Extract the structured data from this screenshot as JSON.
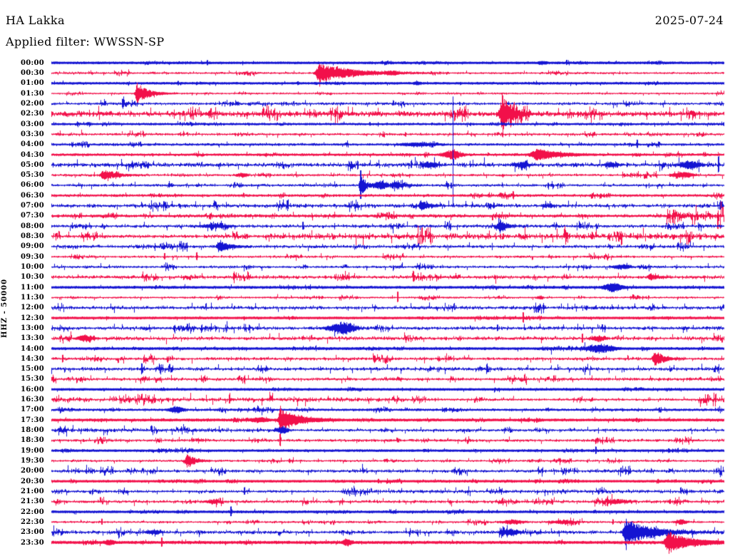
{
  "chart_data": {
    "type": "line",
    "subtype": "helicorder-day-plot",
    "title": "HA Lakka",
    "date": "2025-07-24",
    "filter_line": "Applied filter: WWSSN-SP",
    "ylabel": "HHZ - 50000",
    "x_axis": {
      "unit": "minutes per row",
      "range": [
        0,
        30
      ],
      "ticks_visible": false
    },
    "row_interval_minutes": 30,
    "legend": "none",
    "grid": "off",
    "colors": {
      "blue": "#1414d2",
      "red": "#f2104a"
    },
    "rows": [
      {
        "time": "00:00",
        "color": "blue",
        "thick": 2.6,
        "noise": 0.35,
        "events": [
          {
            "kind": "spike",
            "t": 6.95,
            "amp": 2.5
          },
          {
            "kind": "burst",
            "t": 21.9,
            "amp": 1.5,
            "w": 6
          },
          {
            "kind": "spike",
            "t": 23.0,
            "amp": 1.5
          }
        ]
      },
      {
        "time": "00:30",
        "color": "red",
        "thick": 1.0,
        "noise": 0.55,
        "events": [
          {
            "kind": "quake",
            "t": 11.96,
            "amp": 13,
            "w": 10,
            "coda": 45
          },
          {
            "kind": "clip",
            "t": 11.96,
            "up": 13,
            "dn": 19
          },
          {
            "kind": "burst",
            "t": 15.2,
            "amp": 2,
            "w": 8
          }
        ]
      },
      {
        "time": "01:00",
        "color": "blue",
        "thick": 2.4,
        "noise": 0.4,
        "events": [
          {
            "kind": "spike",
            "t": 5.65,
            "amp": 2
          },
          {
            "kind": "spike",
            "t": 11.0,
            "amp": 1.5
          },
          {
            "kind": "burst",
            "t": 16.3,
            "amp": 1.5,
            "w": 5
          }
        ]
      },
      {
        "time": "01:30",
        "color": "red",
        "thick": 1.0,
        "noise": 0.5,
        "events": [
          {
            "kind": "quake",
            "t": 3.82,
            "amp": 14,
            "w": 5,
            "coda": 15
          },
          {
            "kind": "clip",
            "t": 3.82,
            "up": 15,
            "dn": 18
          }
        ]
      },
      {
        "time": "02:00",
        "color": "blue",
        "thick": 1.0,
        "noise": 0.8,
        "events": [
          {
            "kind": "spike",
            "t": 3.18,
            "amp": 6
          }
        ]
      },
      {
        "time": "02:30",
        "color": "red",
        "thick": 1.4,
        "noise": 1.7,
        "events": [
          {
            "kind": "quake",
            "t": 20.14,
            "amp": 24,
            "w": 8,
            "coda": 12
          },
          {
            "kind": "clip",
            "t": 20.14,
            "up": 26,
            "dn": 33
          }
        ]
      },
      {
        "time": "03:00",
        "color": "blue",
        "thick": 2.0,
        "noise": 0.5,
        "events": [
          {
            "kind": "spike",
            "t": 14.2,
            "amp": 1.5
          }
        ]
      },
      {
        "time": "03:30",
        "color": "red",
        "thick": 1.0,
        "noise": 0.75,
        "events": [
          {
            "kind": "spike",
            "t": 15.8,
            "amp": 2
          }
        ]
      },
      {
        "time": "04:00",
        "color": "blue",
        "thick": 1.6,
        "noise": 0.6,
        "events": [
          {
            "kind": "burst",
            "t": 16.4,
            "amp": 2,
            "w": 25
          },
          {
            "kind": "spike",
            "t": 26.15,
            "amp": 5
          }
        ]
      },
      {
        "time": "04:30",
        "color": "red",
        "thick": 2.0,
        "noise": 0.55,
        "events": [
          {
            "kind": "burst",
            "t": 17.9,
            "amp": 6,
            "w": 12
          },
          {
            "kind": "quake",
            "t": 21.73,
            "amp": 8,
            "w": 18,
            "coda": 25
          }
        ]
      },
      {
        "time": "05:00",
        "color": "blue",
        "thick": 1.0,
        "noise": 1.4,
        "events": [
          {
            "kind": "burst",
            "t": 16.9,
            "amp": 4,
            "w": 10
          },
          {
            "kind": "clip",
            "t": 17.91,
            "up": 96,
            "dn": 59
          },
          {
            "kind": "burst",
            "t": 21.0,
            "amp": 3,
            "w": 12
          },
          {
            "kind": "burst",
            "t": 25.0,
            "amp": 3,
            "w": 10
          },
          {
            "kind": "burst",
            "t": 28.5,
            "amp": 5,
            "w": 14
          },
          {
            "kind": "spike",
            "t": 29.75,
            "amp": 11
          }
        ]
      },
      {
        "time": "05:30",
        "color": "red",
        "thick": 1.0,
        "noise": 0.7,
        "events": [
          {
            "kind": "quake",
            "t": 2.32,
            "amp": 6,
            "w": 8,
            "coda": 20
          },
          {
            "kind": "burst",
            "t": 8.5,
            "amp": 2.5,
            "w": 8
          },
          {
            "kind": "burst",
            "t": 28.2,
            "amp": 3.5,
            "w": 14
          }
        ]
      },
      {
        "time": "06:00",
        "color": "blue",
        "thick": 1.0,
        "noise": 0.8,
        "events": [
          {
            "kind": "quake",
            "t": 13.78,
            "amp": 19,
            "w": 3,
            "coda": 6
          },
          {
            "kind": "clip",
            "t": 13.78,
            "up": 21,
            "dn": 19
          },
          {
            "kind": "burst",
            "t": 14.7,
            "amp": 5.5,
            "w": 10
          },
          {
            "kind": "quake",
            "t": 15.3,
            "amp": 4,
            "w": 8,
            "coda": 15
          }
        ]
      },
      {
        "time": "06:30",
        "color": "red",
        "thick": 1.8,
        "noise": 0.6,
        "events": [
          {
            "kind": "spike",
            "t": 20.61,
            "amp": 4
          }
        ]
      },
      {
        "time": "07:00",
        "color": "blue",
        "thick": 1.0,
        "noise": 1.2,
        "events": [
          {
            "kind": "quake",
            "t": 16.48,
            "amp": 6,
            "w": 6,
            "coda": 12
          },
          {
            "kind": "burst",
            "t": 22.2,
            "amp": 2,
            "w": 8
          }
        ]
      },
      {
        "time": "07:30",
        "color": "red",
        "thick": 1.8,
        "noise": 0.8,
        "zones": [
          {
            "from": 27.4,
            "to": 30,
            "noise": 2.8
          }
        ],
        "events": []
      },
      {
        "time": "08:00",
        "color": "blue",
        "thick": 1.0,
        "noise": 1.0,
        "events": [
          {
            "kind": "burst",
            "t": 7.3,
            "amp": 2.5,
            "w": 20
          },
          {
            "kind": "spike",
            "t": 11.2,
            "amp": 5.5
          },
          {
            "kind": "quake",
            "t": 19.98,
            "amp": 8,
            "w": 6,
            "coda": 10
          }
        ]
      },
      {
        "time": "08:30",
        "color": "red",
        "thick": 1.0,
        "noise": 1.1,
        "zones": [
          {
            "from": 9.5,
            "to": 30,
            "noise": 2.1
          }
        ],
        "events": []
      },
      {
        "time": "09:00",
        "color": "blue",
        "thick": 1.0,
        "noise": 0.95,
        "events": [
          {
            "kind": "quake",
            "t": 7.48,
            "amp": 8,
            "w": 6,
            "coda": 14
          }
        ]
      },
      {
        "time": "09:30",
        "color": "red",
        "thick": 1.0,
        "noise": 0.65,
        "events": [
          {
            "kind": "spike",
            "t": 5.03,
            "amp": 4
          },
          {
            "kind": "spike",
            "t": 6.46,
            "amp": 5
          }
        ]
      },
      {
        "time": "10:00",
        "color": "blue",
        "thick": 1.0,
        "noise": 0.75,
        "events": [
          {
            "kind": "burst",
            "t": 25.48,
            "amp": 3,
            "w": 12
          }
        ]
      },
      {
        "time": "10:30",
        "color": "red",
        "thick": 1.0,
        "noise": 1.1,
        "events": [
          {
            "kind": "spike",
            "t": 16.16,
            "amp": 7
          },
          {
            "kind": "quake",
            "t": 26.72,
            "amp": 5,
            "w": 6,
            "coda": 10
          }
        ]
      },
      {
        "time": "11:00",
        "color": "blue",
        "thick": 2.6,
        "noise": 0.45,
        "events": [
          {
            "kind": "burst",
            "t": 25.07,
            "amp": 5,
            "w": 12
          }
        ]
      },
      {
        "time": "11:30",
        "color": "red",
        "thick": 1.0,
        "noise": 0.55,
        "events": [
          {
            "kind": "spike",
            "t": 15.46,
            "amp": 7
          },
          {
            "kind": "burst",
            "t": 21.8,
            "amp": 2.5,
            "w": 4
          }
        ]
      },
      {
        "time": "12:00",
        "color": "blue",
        "thick": 1.0,
        "noise": 1.1,
        "events": []
      },
      {
        "time": "12:30",
        "color": "red",
        "thick": 2.6,
        "noise": 0.35,
        "events": [
          {
            "kind": "spike",
            "t": 21.06,
            "amp": 6
          }
        ]
      },
      {
        "time": "13:00",
        "color": "blue",
        "thick": 1.0,
        "noise": 1.1,
        "events": [
          {
            "kind": "burst",
            "t": 12.98,
            "amp": 8,
            "w": 18
          },
          {
            "kind": "spike",
            "t": 19.9,
            "amp": 4
          }
        ]
      },
      {
        "time": "13:30",
        "color": "red",
        "thick": 1.0,
        "noise": 1.2,
        "events": [
          {
            "kind": "burst",
            "t": 1.53,
            "amp": 4,
            "w": 12
          },
          {
            "kind": "spike",
            "t": 23.7,
            "amp": 5.5
          },
          {
            "kind": "burst",
            "t": 24.43,
            "amp": 3.5,
            "w": 10
          }
        ]
      },
      {
        "time": "14:00",
        "color": "blue",
        "thick": 2.6,
        "noise": 0.45,
        "zones": [
          {
            "from": 21.9,
            "to": 25.1,
            "noise": 1.2
          }
        ],
        "events": [
          {
            "kind": "burst",
            "t": 24.5,
            "amp": 4,
            "w": 18
          }
        ]
      },
      {
        "time": "14:30",
        "color": "red",
        "thick": 1.0,
        "noise": 0.95,
        "events": [
          {
            "kind": "spike",
            "t": 0.5,
            "amp": 5
          },
          {
            "kind": "spike",
            "t": 14.4,
            "amp": 4
          },
          {
            "kind": "quake",
            "t": 26.95,
            "amp": 10,
            "w": 7,
            "coda": 12
          }
        ]
      },
      {
        "time": "15:00",
        "color": "blue",
        "thick": 1.0,
        "noise": 1.05,
        "events": [
          {
            "kind": "spike",
            "t": 19.41,
            "amp": 5
          }
        ]
      },
      {
        "time": "15:30",
        "color": "red",
        "thick": 1.0,
        "noise": 0.95,
        "events": []
      },
      {
        "time": "16:00",
        "color": "blue",
        "thick": 2.6,
        "noise": 0.35,
        "events": []
      },
      {
        "time": "16:30",
        "color": "red",
        "thick": 1.0,
        "noise": 0.75,
        "zones": [
          {
            "from": 0,
            "to": 15.5,
            "noise": 1.5
          },
          {
            "from": 28.8,
            "to": 30,
            "noise": 2.4
          }
        ],
        "events": [
          {
            "kind": "spike",
            "t": 7.95,
            "amp": 6
          }
        ]
      },
      {
        "time": "17:00",
        "color": "blue",
        "thick": 1.8,
        "noise": 0.55,
        "events": [
          {
            "kind": "burst",
            "t": 5.57,
            "amp": 4,
            "w": 10
          },
          {
            "kind": "spike",
            "t": 17.6,
            "amp": 1.8
          }
        ]
      },
      {
        "time": "17:30",
        "color": "red",
        "thick": 2.6,
        "noise": 0.5,
        "events": [
          {
            "kind": "burst",
            "t": 9.3,
            "amp": 2.5,
            "w": 12
          },
          {
            "kind": "quake",
            "t": 10.21,
            "amp": 15,
            "w": 5,
            "coda": 22
          },
          {
            "kind": "clip",
            "t": 10.21,
            "up": 20,
            "dn": 27
          }
        ]
      },
      {
        "time": "18:00",
        "color": "blue",
        "thick": 1.0,
        "noise": 0.8,
        "zones": [
          {
            "from": 0,
            "to": 10,
            "noise": 1.3
          }
        ],
        "events": [
          {
            "kind": "burst",
            "t": 10.28,
            "amp": 5,
            "w": 8
          }
        ]
      },
      {
        "time": "18:30",
        "color": "red",
        "thick": 1.0,
        "noise": 0.85,
        "events": [
          {
            "kind": "spike",
            "t": 10.21,
            "amp": 8
          }
        ]
      },
      {
        "time": "19:00",
        "color": "blue",
        "thick": 2.4,
        "noise": 0.4,
        "events": [
          {
            "kind": "spike",
            "t": 24.28,
            "amp": 4
          }
        ]
      },
      {
        "time": "19:30",
        "color": "red",
        "thick": 1.0,
        "noise": 0.6,
        "events": [
          {
            "kind": "quake",
            "t": 6.04,
            "amp": 9,
            "w": 4,
            "coda": 10
          },
          {
            "kind": "spike",
            "t": 22.7,
            "amp": 2
          }
        ]
      },
      {
        "time": "20:00",
        "color": "blue",
        "thick": 1.0,
        "noise": 0.95,
        "events": []
      },
      {
        "time": "20:30",
        "color": "red",
        "thick": 2.6,
        "noise": 0.35,
        "events": [
          {
            "kind": "spike",
            "t": 14.6,
            "amp": 2
          }
        ]
      },
      {
        "time": "21:00",
        "color": "blue",
        "thick": 1.0,
        "noise": 0.7,
        "zones": [
          {
            "from": 13,
            "to": 30,
            "noise": 1.1
          }
        ],
        "events": [
          {
            "kind": "spike",
            "t": 8.62,
            "amp": 5
          }
        ]
      },
      {
        "time": "21:30",
        "color": "red",
        "thick": 1.0,
        "noise": 0.95,
        "events": [
          {
            "kind": "burst",
            "t": 7.2,
            "amp": 2.5,
            "w": 10
          },
          {
            "kind": "burst",
            "t": 25.2,
            "amp": 3,
            "w": 16
          },
          {
            "kind": "spike",
            "t": 27.6,
            "amp": 2.5
          }
        ]
      },
      {
        "time": "22:00",
        "color": "blue",
        "thick": 2.6,
        "noise": 0.4,
        "events": [
          {
            "kind": "spike",
            "t": 7.99,
            "amp": 6
          }
        ]
      },
      {
        "time": "22:30",
        "color": "red",
        "thick": 1.0,
        "noise": 0.65,
        "events": [
          {
            "kind": "spike",
            "t": 2.23,
            "amp": 4
          },
          {
            "kind": "burst",
            "t": 20.6,
            "amp": 2.5,
            "w": 16
          },
          {
            "kind": "burst",
            "t": 22.8,
            "amp": 2.5,
            "w": 16
          },
          {
            "kind": "spike",
            "t": 25.04,
            "amp": 3
          },
          {
            "kind": "burst",
            "t": 28.1,
            "amp": 3,
            "w": 8
          }
        ]
      },
      {
        "time": "23:00",
        "color": "blue",
        "thick": 1.0,
        "noise": 1.1,
        "events": [
          {
            "kind": "burst",
            "t": 4.55,
            "amp": 3,
            "w": 10
          },
          {
            "kind": "burst",
            "t": 20.5,
            "amp": 4,
            "w": 12
          },
          {
            "kind": "quake",
            "t": 25.64,
            "amp": 17,
            "w": 8,
            "coda": 35
          },
          {
            "kind": "clip",
            "t": 25.64,
            "up": 19,
            "dn": 25
          }
        ]
      },
      {
        "time": "23:30",
        "color": "red",
        "thick": 2.8,
        "noise": 0.5,
        "events": [
          {
            "kind": "burst",
            "t": 2.6,
            "amp": 3,
            "w": 6
          },
          {
            "kind": "spike",
            "t": 4.9,
            "amp": 5
          },
          {
            "kind": "burst",
            "t": 13.2,
            "amp": 4,
            "w": 6
          },
          {
            "kind": "quake",
            "t": 27.52,
            "amp": 13,
            "w": 9,
            "coda": 30
          }
        ]
      }
    ]
  }
}
